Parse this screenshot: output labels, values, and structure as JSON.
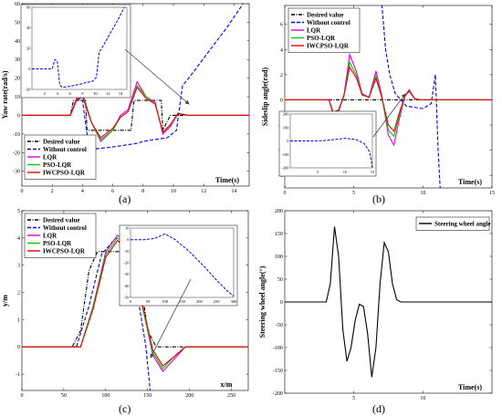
{
  "figure": {
    "captions": [
      "(a)",
      "(b)",
      "(c)",
      "(d)"
    ]
  },
  "colors": {
    "desired": "#000000",
    "without_control": "#0000ee",
    "lqr": "#e000e0",
    "pso_lqr": "#00cc00",
    "iwcpso_lqr": "#ee0000",
    "steering": "#000000"
  },
  "chart_data": [
    {
      "panel": "(a)",
      "type": "line",
      "xlabel": "Time(s)",
      "ylabel": "Yaw rate(rad/s)",
      "xlim": [
        0,
        15
      ],
      "ylim": [
        -38,
        60
      ],
      "xticks": [
        0,
        2,
        4,
        6,
        8,
        10,
        12,
        14
      ],
      "yticks": [
        -30,
        -20,
        -10,
        0,
        10,
        20,
        30,
        40,
        50,
        60
      ],
      "grid": false,
      "legend_position": "lower-left",
      "legend": [
        "Desired value",
        "Without control",
        "LQR",
        "PSO-LQR",
        "IWCPSO-LQR"
      ],
      "series": [
        {
          "name": "Desired value",
          "style": "dashdot",
          "color": "#000000",
          "x": [
            0,
            3.2,
            3.4,
            4.2,
            4.3,
            7.2,
            7.4,
            9.2,
            9.3,
            9.8,
            15
          ],
          "y": [
            0,
            0,
            8,
            8,
            -8,
            -8,
            8,
            8,
            -8,
            0,
            0
          ]
        },
        {
          "name": "Without control",
          "style": "dashed",
          "color": "#0000ee",
          "x": [
            0,
            3.2,
            3.6,
            4.0,
            4.4,
            4.8,
            6.0,
            7.6,
            8.0,
            9.6,
            10.2,
            10.6,
            11.2,
            12.4,
            13.6,
            14.6
          ],
          "y": [
            0,
            0,
            9,
            8,
            -16,
            -18,
            -17,
            -15,
            -14,
            -12,
            -8,
            16,
            22,
            35,
            48,
            60
          ]
        },
        {
          "name": "LQR",
          "style": "solid",
          "color": "#e000e0",
          "x": [
            0,
            3.2,
            3.6,
            4.0,
            4.6,
            5.2,
            6.0,
            6.5,
            7.0,
            7.6,
            8.2,
            8.8,
            9.3,
            9.8,
            10.3,
            11,
            15
          ],
          "y": [
            0,
            0,
            9,
            12,
            -4,
            -14,
            -8,
            0,
            3,
            18,
            10,
            7,
            -10,
            -6,
            1,
            0,
            0
          ]
        },
        {
          "name": "PSO-LQR",
          "style": "solid",
          "color": "#00cc00",
          "x": [
            0,
            3.2,
            3.6,
            4.0,
            4.6,
            5.2,
            6.0,
            6.5,
            7.0,
            7.6,
            8.2,
            8.8,
            9.3,
            9.8,
            10.3,
            11,
            15
          ],
          "y": [
            0,
            0,
            8,
            11,
            -4,
            -13,
            -8,
            -1,
            2,
            16,
            10,
            6,
            -9,
            -5,
            1,
            0,
            0
          ]
        },
        {
          "name": "IWCPSO-LQR",
          "style": "solid",
          "color": "#ee0000",
          "x": [
            0,
            3.2,
            3.6,
            4.0,
            4.6,
            5.2,
            6.0,
            6.5,
            7.0,
            7.6,
            8.2,
            8.8,
            9.3,
            9.8,
            10.3,
            11,
            15
          ],
          "y": [
            0,
            0,
            8,
            10,
            -4,
            -12,
            -7,
            -1,
            2,
            15,
            9,
            6,
            -9,
            -5,
            1,
            0,
            0
          ]
        }
      ],
      "inset": {
        "xlim": [
          0,
          15
        ],
        "ylim": [
          -20,
          60
        ],
        "xticks": [
          2,
          4,
          6,
          8,
          10,
          12,
          14
        ],
        "yticks": [
          -20,
          0,
          20,
          40,
          60
        ],
        "x": [
          0,
          3.2,
          3.6,
          4.0,
          4.4,
          4.8,
          6.0,
          7.6,
          8.0,
          9.6,
          10.2,
          10.6,
          11.2,
          12.4,
          13.6,
          14.6
        ],
        "y": [
          0,
          0,
          9,
          8,
          -16,
          -18,
          -17,
          -15,
          -14,
          -12,
          -8,
          16,
          22,
          35,
          48,
          60
        ]
      }
    },
    {
      "panel": "(b)",
      "type": "line",
      "xlabel": "Time(s)",
      "ylabel": "Sideslip angle(rad)",
      "xlim": [
        0,
        15
      ],
      "ylim": [
        -7,
        7.5
      ],
      "xticks": [
        0,
        5,
        10,
        15
      ],
      "yticks": [
        -6,
        -4,
        -2,
        0,
        2,
        4,
        6
      ],
      "grid": false,
      "legend_position": "top-left",
      "legend": [
        "Desired value",
        "Without control",
        "LQR",
        "PSO-LQR",
        "IWCPSO-LQR"
      ],
      "series": [
        {
          "name": "Desired value",
          "style": "dashdot",
          "color": "#000000",
          "x": [
            0,
            15
          ],
          "y": [
            0,
            0
          ]
        },
        {
          "name": "Without control",
          "style": "dashed",
          "color": "#0000ee",
          "x": [
            7.0,
            7.3,
            7.6,
            8.0,
            8.8,
            10.0,
            10.6,
            10.9,
            11.1,
            11.3
          ],
          "y": [
            8,
            4,
            2,
            0.5,
            -0.5,
            -0.7,
            -0.3,
            2,
            -4,
            -8
          ]
        },
        {
          "name": "LQR",
          "style": "solid",
          "color": "#e000e0",
          "x": [
            0,
            3.2,
            3.5,
            3.9,
            4.3,
            4.7,
            5.2,
            5.6,
            6.1,
            6.6,
            7.0,
            7.5,
            7.9,
            8.3,
            8.7,
            9.0,
            9.4,
            9.8,
            15
          ],
          "y": [
            0,
            0,
            -1.2,
            -1.0,
            0.5,
            3.6,
            2.2,
            0.5,
            0.2,
            2.3,
            0.5,
            -2.8,
            -3.6,
            -1.5,
            0.3,
            0.8,
            0.1,
            0,
            0
          ]
        },
        {
          "name": "PSO-LQR",
          "style": "solid",
          "color": "#00cc00",
          "x": [
            0,
            3.2,
            3.5,
            3.9,
            4.3,
            4.7,
            5.2,
            5.6,
            6.1,
            6.6,
            7.0,
            7.5,
            7.9,
            8.3,
            8.7,
            9.0,
            9.4,
            9.8,
            15
          ],
          "y": [
            0,
            0,
            -1.1,
            -0.9,
            0.4,
            3.0,
            1.9,
            0.4,
            0.2,
            1.9,
            0.3,
            -2.4,
            -2.9,
            -1.2,
            0.3,
            0.7,
            0.1,
            0,
            0
          ]
        },
        {
          "name": "IWCPSO-LQR",
          "style": "solid",
          "color": "#ee0000",
          "x": [
            0,
            3.2,
            3.5,
            3.9,
            4.3,
            4.7,
            5.2,
            5.6,
            6.1,
            6.6,
            7.0,
            7.5,
            7.9,
            8.3,
            8.7,
            9.0,
            9.4,
            9.8,
            15
          ],
          "y": [
            0,
            0,
            -1.0,
            -0.8,
            0.4,
            2.6,
            1.7,
            0.4,
            0.2,
            1.7,
            0.3,
            -2.0,
            -2.5,
            -1.0,
            0.3,
            0.7,
            0.1,
            0,
            0
          ]
        }
      ],
      "inset": {
        "xlim": [
          0,
          15
        ],
        "ylim": [
          -200,
          200
        ],
        "xticks": [
          5,
          10,
          15
        ],
        "yticks": [
          -200,
          -100,
          0,
          100,
          200
        ],
        "x": [
          0,
          3,
          6,
          8,
          10,
          12,
          13.5,
          14.5,
          15
        ],
        "y": [
          0,
          0,
          2,
          10,
          20,
          10,
          -20,
          -80,
          -200
        ]
      }
    },
    {
      "panel": "(c)",
      "type": "line",
      "xlabel": "x/m",
      "ylabel": "y/m",
      "xlim": [
        0,
        270
      ],
      "ylim": [
        -1.6,
        5
      ],
      "xticks": [
        0,
        50,
        100,
        150,
        200,
        250
      ],
      "yticks": [
        -1,
        0,
        1,
        2,
        3,
        4,
        5
      ],
      "grid": false,
      "legend_position": "top-left",
      "legend": [
        "Desired value",
        "Without control",
        "LQR",
        "PSO-LQR",
        "IWCPSO-LQR"
      ],
      "series": [
        {
          "name": "Desired value",
          "style": "dashdot",
          "color": "#000000",
          "x": [
            0,
            60,
            70,
            80,
            90,
            130,
            140,
            150,
            160,
            270
          ],
          "y": [
            0,
            0,
            0.6,
            2.8,
            3.5,
            3.5,
            2.8,
            0.6,
            0,
            0
          ]
        },
        {
          "name": "Without control",
          "style": "dashed",
          "color": "#0000ee",
          "x": [
            0,
            65,
            80,
            95,
            112,
            125,
            140,
            148,
            153
          ],
          "y": [
            0,
            0,
            1.5,
            3.4,
            4.0,
            3.5,
            1.5,
            0,
            -1.6
          ]
        },
        {
          "name": "LQR",
          "style": "solid",
          "color": "#e000e0",
          "x": [
            0,
            70,
            85,
            100,
            114,
            128,
            142,
            156,
            168,
            180,
            195,
            270
          ],
          "y": [
            0,
            0,
            1.5,
            3.5,
            4.1,
            3.8,
            1.8,
            -0.3,
            -0.9,
            -0.5,
            0,
            0
          ]
        },
        {
          "name": "PSO-LQR",
          "style": "solid",
          "color": "#00cc00",
          "x": [
            0,
            70,
            85,
            100,
            114,
            128,
            142,
            156,
            168,
            180,
            195,
            270
          ],
          "y": [
            0,
            0,
            1.5,
            3.4,
            4.0,
            3.7,
            1.7,
            -0.2,
            -0.8,
            -0.4,
            0,
            0
          ]
        },
        {
          "name": "IWCPSO-LQR",
          "style": "solid",
          "color": "#ee0000",
          "x": [
            0,
            70,
            85,
            100,
            114,
            128,
            142,
            156,
            168,
            180,
            195,
            270
          ],
          "y": [
            0,
            0,
            1.4,
            3.3,
            3.9,
            3.7,
            1.8,
            -0.1,
            -0.7,
            -0.4,
            0,
            0
          ]
        }
      ],
      "inset": {
        "xlim": [
          0,
          300
        ],
        "ylim": [
          -50,
          10
        ],
        "xticks": [
          0,
          50,
          100,
          150,
          200,
          250,
          300
        ],
        "yticks": [
          -50,
          -40,
          -30,
          -20,
          -10,
          0,
          10
        ],
        "x": [
          0,
          40,
          70,
          100,
          130,
          170,
          210,
          250,
          280,
          300
        ],
        "y": [
          0,
          0,
          1,
          5,
          0,
          -10,
          -22,
          -35,
          -44,
          -49
        ]
      }
    },
    {
      "panel": "(d)",
      "type": "line",
      "xlabel": "Time(s)",
      "ylabel": "Steering wheel angle(°)",
      "xlim": [
        0,
        15
      ],
      "ylim": [
        -200,
        200
      ],
      "xticks": [
        5,
        10
      ],
      "yticks": [
        -200,
        -150,
        -100,
        -50,
        0,
        50,
        100,
        150,
        200
      ],
      "grid": false,
      "legend_position": "top-right",
      "legend": [
        "Steering wheel angle"
      ],
      "series": [
        {
          "name": "Steering wheel angle",
          "style": "solid",
          "color": "#000000",
          "x": [
            0,
            3.0,
            3.3,
            3.6,
            3.9,
            4.2,
            4.5,
            4.8,
            5.1,
            5.4,
            5.7,
            6.0,
            6.3,
            6.6,
            6.9,
            7.2,
            7.5,
            7.8,
            8.1,
            8.4,
            15
          ],
          "y": [
            0,
            0,
            40,
            165,
            100,
            -60,
            -130,
            -100,
            -40,
            -5,
            -10,
            -70,
            -165,
            -100,
            40,
            130,
            110,
            40,
            5,
            0,
            0
          ]
        }
      ]
    }
  ]
}
